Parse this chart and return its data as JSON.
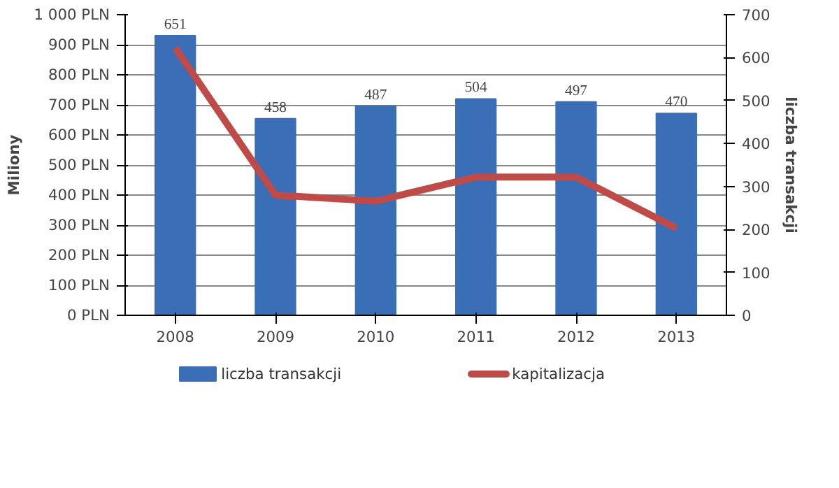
{
  "chart_data": {
    "type": "bar",
    "categories": [
      "2008",
      "2009",
      "2010",
      "2011",
      "2012",
      "2013"
    ],
    "ylabel": "Miliony",
    "y2label": "liczba transakcji",
    "series": [
      {
        "name": "liczba transakcji",
        "axis": "y2",
        "color": "#3a6fb8",
        "values": [
          651,
          458,
          487,
          504,
          497,
          470
        ],
        "value_labels": [
          "651",
          "458",
          "487",
          "504",
          "497",
          "470"
        ]
      },
      {
        "name": "kapitalizacja",
        "type": "line",
        "axis": "y",
        "color": "#be4b48",
        "values": [
          890,
          400,
          380,
          460,
          460,
          290
        ]
      }
    ],
    "ylim": [
      0,
      1000
    ],
    "yticks": [
      {
        "value": 0,
        "label": "0 PLN"
      },
      {
        "value": 100,
        "label": "100 PLN"
      },
      {
        "value": 200,
        "label": "200 PLN"
      },
      {
        "value": 300,
        "label": "300 PLN"
      },
      {
        "value": 400,
        "label": "400 PLN"
      },
      {
        "value": 500,
        "label": "500 PLN"
      },
      {
        "value": 600,
        "label": "600 PLN"
      },
      {
        "value": 700,
        "label": "700 PLN"
      },
      {
        "value": 800,
        "label": "800 PLN"
      },
      {
        "value": 900,
        "label": "900 PLN"
      },
      {
        "value": 1000,
        "label": "1 000 PLN"
      }
    ],
    "y2lim": [
      0,
      700
    ],
    "y2ticks": [
      0,
      100,
      200,
      300,
      400,
      500,
      600,
      700
    ],
    "grid": "y",
    "legend": "bottom"
  }
}
